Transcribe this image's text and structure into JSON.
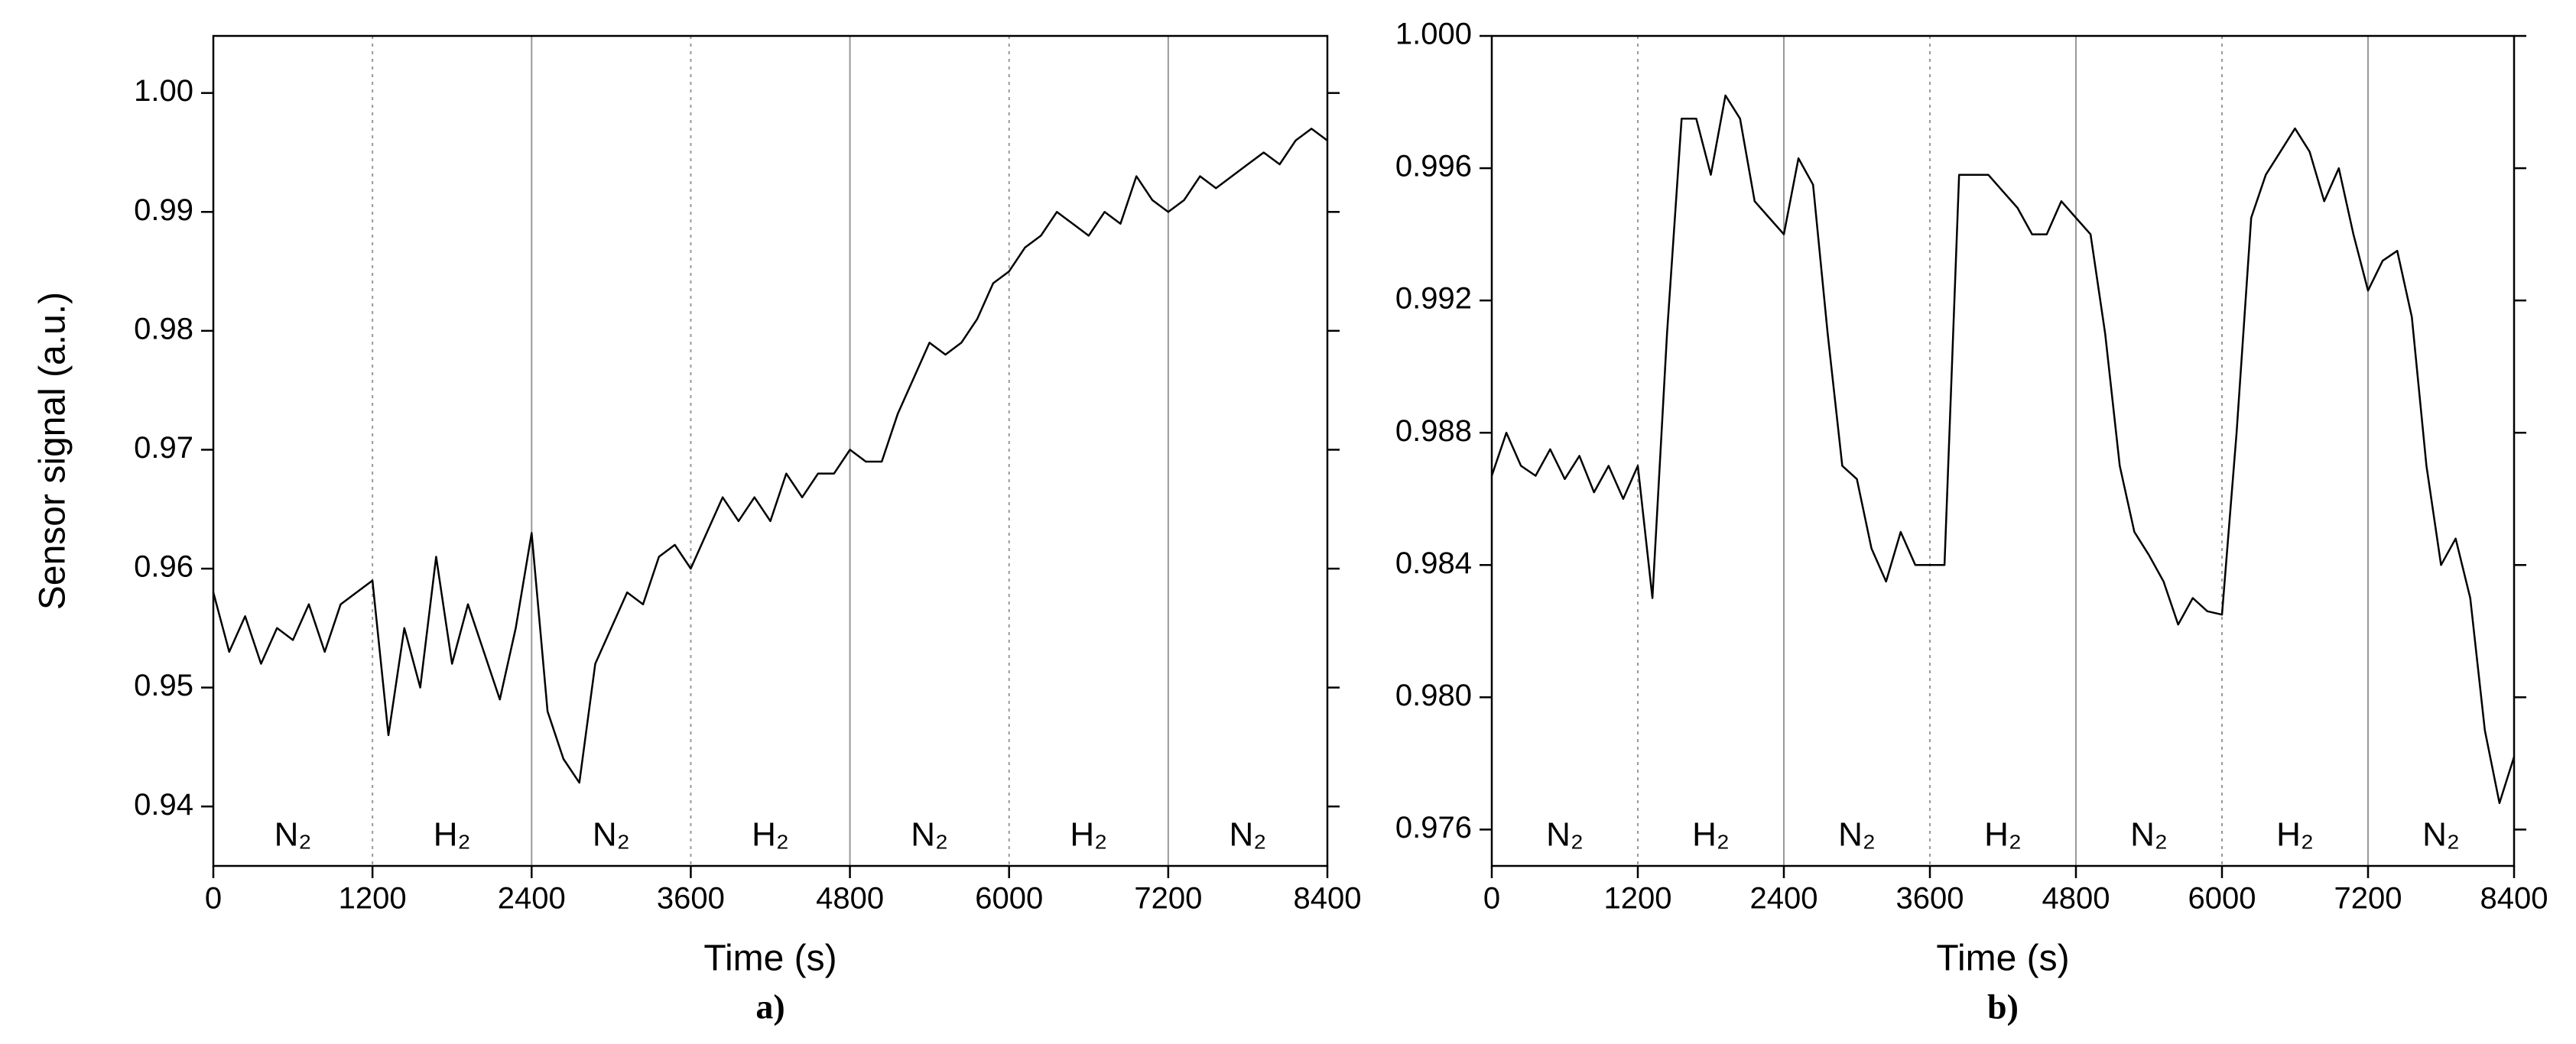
{
  "chart_data": [
    {
      "type": "line",
      "caption": "a)",
      "xlabel": "Time (s)",
      "ylabel": "Sensor signal (a.u.)",
      "color": "#000000",
      "xlim": [
        0,
        8400
      ],
      "xticks": [
        0,
        1200,
        2400,
        3600,
        4800,
        6000,
        7200,
        8400
      ],
      "ylim": [
        0.935,
        1.0048
      ],
      "yticks": [
        0.94,
        0.95,
        0.96,
        0.97,
        0.98,
        0.99,
        {
          "value": 1,
          "label": "1.00"
        }
      ],
      "regions": [
        {
          "label": "N₂",
          "from": 0,
          "to": 1200
        },
        {
          "label": "H₂",
          "from": 1200,
          "to": 2400
        },
        {
          "label": "N₂",
          "from": 2400,
          "to": 3600
        },
        {
          "label": "H₂",
          "from": 3600,
          "to": 4800
        },
        {
          "label": "N₂",
          "from": 4800,
          "to": 6000
        },
        {
          "label": "H₂",
          "from": 6000,
          "to": 7200
        },
        {
          "label": "N₂",
          "from": 7200,
          "to": 8400
        }
      ],
      "x": [
        0,
        120,
        240,
        360,
        480,
        600,
        720,
        840,
        960,
        1080,
        1200,
        1320,
        1440,
        1560,
        1680,
        1800,
        1920,
        2040,
        2160,
        2280,
        2400,
        2520,
        2640,
        2760,
        2880,
        3000,
        3120,
        3240,
        3360,
        3480,
        3600,
        3720,
        3840,
        3960,
        4080,
        4200,
        4320,
        4440,
        4560,
        4680,
        4800,
        4920,
        5040,
        5160,
        5280,
        5400,
        5520,
        5640,
        5760,
        5880,
        6000,
        6120,
        6240,
        6360,
        6480,
        6600,
        6720,
        6840,
        6960,
        7080,
        7200,
        7320,
        7440,
        7560,
        7680,
        7800,
        7920,
        8040,
        8160,
        8280,
        8400
      ],
      "values": [
        0.958,
        0.953,
        0.956,
        0.952,
        0.955,
        0.954,
        0.957,
        0.953,
        0.957,
        0.958,
        0.959,
        0.946,
        0.955,
        0.95,
        0.961,
        0.952,
        0.957,
        0.953,
        0.949,
        0.955,
        0.963,
        0.948,
        0.944,
        0.942,
        0.952,
        0.955,
        0.958,
        0.957,
        0.961,
        0.962,
        0.96,
        0.963,
        0.966,
        0.964,
        0.966,
        0.964,
        0.968,
        0.966,
        0.968,
        0.968,
        0.97,
        0.969,
        0.969,
        0.973,
        0.976,
        0.979,
        0.978,
        0.979,
        0.981,
        0.984,
        0.985,
        0.987,
        0.988,
        0.99,
        0.989,
        0.988,
        0.99,
        0.989,
        0.993,
        0.991,
        0.99,
        0.991,
        0.993,
        0.992,
        0.993,
        0.994,
        0.995,
        0.994,
        0.996,
        0.997,
        0.996
      ]
    },
    {
      "type": "line",
      "caption": "b)",
      "xlabel": "Time (s)",
      "color": "#000000",
      "xlim": [
        0,
        8400
      ],
      "xticks": [
        0,
        1200,
        2400,
        3600,
        4800,
        6000,
        7200,
        8400
      ],
      "ylim": [
        0.9749,
        1.0
      ],
      "yticks": [
        0.976,
        {
          "value": 0.98,
          "label": "0.980"
        },
        0.984,
        0.988,
        0.992,
        0.996,
        {
          "value": 1,
          "label": "1.000"
        }
      ],
      "regions": [
        {
          "label": "N₂",
          "from": 0,
          "to": 1200
        },
        {
          "label": "H₂",
          "from": 1200,
          "to": 2400
        },
        {
          "label": "N₂",
          "from": 2400,
          "to": 3600
        },
        {
          "label": "H₂",
          "from": 3600,
          "to": 4800
        },
        {
          "label": "N₂",
          "from": 4800,
          "to": 6000
        },
        {
          "label": "H₂",
          "from": 6000,
          "to": 7200
        },
        {
          "label": "N₂",
          "from": 7200,
          "to": 8400
        }
      ],
      "x": [
        0,
        120,
        240,
        360,
        480,
        600,
        720,
        840,
        960,
        1080,
        1200,
        1320,
        1440,
        1560,
        1680,
        1800,
        1920,
        2040,
        2160,
        2280,
        2400,
        2520,
        2640,
        2760,
        2880,
        3000,
        3120,
        3240,
        3360,
        3480,
        3600,
        3720,
        3840,
        3960,
        4080,
        4200,
        4320,
        4440,
        4560,
        4680,
        4800,
        4920,
        5040,
        5160,
        5280,
        5400,
        5520,
        5640,
        5760,
        5880,
        6000,
        6120,
        6240,
        6360,
        6480,
        6600,
        6720,
        6840,
        6960,
        7080,
        7200,
        7320,
        7440,
        7560,
        7680,
        7800,
        7920,
        8040,
        8160,
        8280,
        8400
      ],
      "values": [
        0.9867,
        0.988,
        0.987,
        0.9867,
        0.9875,
        0.9866,
        0.9873,
        0.9862,
        0.987,
        0.986,
        0.987,
        0.983,
        0.991,
        0.9975,
        0.9975,
        0.9958,
        0.9982,
        0.9975,
        0.995,
        0.9945,
        0.994,
        0.9963,
        0.9955,
        0.991,
        0.987,
        0.9866,
        0.9845,
        0.9835,
        0.985,
        0.984,
        0.984,
        0.984,
        0.9958,
        0.9958,
        0.9958,
        0.9953,
        0.9948,
        0.994,
        0.994,
        0.995,
        0.9945,
        0.994,
        0.991,
        0.987,
        0.985,
        0.9843,
        0.9835,
        0.9822,
        0.983,
        0.9826,
        0.9825,
        0.988,
        0.9945,
        0.9958,
        0.9965,
        0.9972,
        0.9965,
        0.995,
        0.996,
        0.994,
        0.9923,
        0.9932,
        0.9935,
        0.9915,
        0.987,
        0.984,
        0.9848,
        0.983,
        0.979,
        0.9768,
        0.9782
      ]
    }
  ]
}
